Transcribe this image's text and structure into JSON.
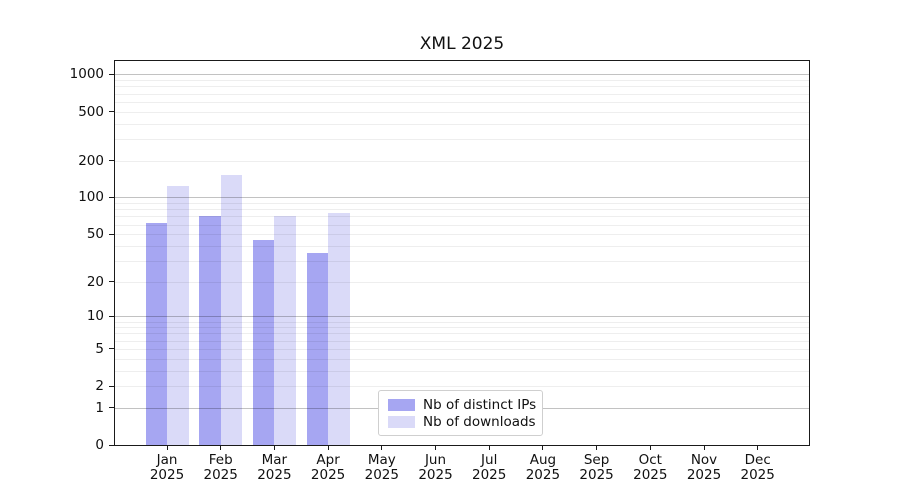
{
  "page": {
    "background": "#ffffff"
  },
  "chart_data": {
    "type": "bar",
    "title": "XML 2025",
    "x_tick_months": [
      "Jan",
      "Feb",
      "Mar",
      "Apr",
      "May",
      "Jun",
      "Jul",
      "Aug",
      "Sep",
      "Oct",
      "Nov",
      "Dec"
    ],
    "x_tick_year": "2025",
    "series": [
      {
        "name": "Nb of distinct IPs",
        "color": "#a6a6f2",
        "values": [
          62,
          71,
          45,
          35,
          null,
          null,
          null,
          null,
          null,
          null,
          null,
          null
        ]
      },
      {
        "name": "Nb of downloads",
        "color": "#dadaf8",
        "values": [
          123,
          152,
          71,
          74,
          null,
          null,
          null,
          null,
          null,
          null,
          null,
          null
        ]
      }
    ],
    "yscale": "log10(value+1)",
    "ylim": [
      0,
      1270
    ],
    "yticks": [
      0,
      1,
      2,
      5,
      10,
      20,
      50,
      100,
      200,
      500,
      1000
    ],
    "grid": {
      "major_values": [
        1,
        10,
        100,
        1000
      ],
      "minor_values": [
        2,
        3,
        4,
        5,
        6,
        7,
        8,
        9,
        20,
        30,
        40,
        50,
        60,
        70,
        80,
        90,
        200,
        300,
        400,
        500,
        600,
        700,
        800,
        900
      ],
      "major_color": "#c2c2c2",
      "minor_color": "#efefef"
    },
    "legend_position": "lower center",
    "frame_color": "#1a1a1a"
  }
}
